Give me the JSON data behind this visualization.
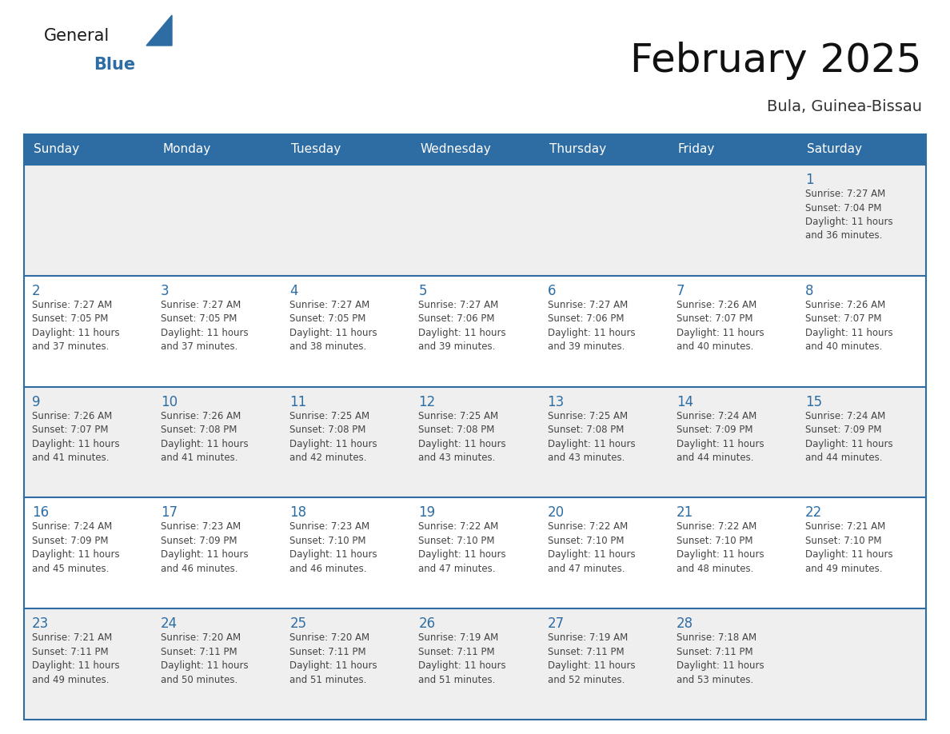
{
  "title": "February 2025",
  "subtitle": "Bula, Guinea-Bissau",
  "header_color": "#2E6DA4",
  "header_text_color": "#FFFFFF",
  "border_color": "#2E6DA4",
  "day_number_color": "#2E6DA4",
  "info_text_color": "#444444",
  "background_color": "#FFFFFF",
  "row_color_odd": "#EFEFEF",
  "row_color_even": "#FFFFFF",
  "days_of_week": [
    "Sunday",
    "Monday",
    "Tuesday",
    "Wednesday",
    "Thursday",
    "Friday",
    "Saturday"
  ],
  "weeks": [
    [
      {
        "day": null
      },
      {
        "day": null
      },
      {
        "day": null
      },
      {
        "day": null
      },
      {
        "day": null
      },
      {
        "day": null
      },
      {
        "day": 1,
        "sunrise": "7:27 AM",
        "sunset": "7:04 PM",
        "daylight": "11 hours and 36 minutes."
      }
    ],
    [
      {
        "day": 2,
        "sunrise": "7:27 AM",
        "sunset": "7:05 PM",
        "daylight": "11 hours and 37 minutes."
      },
      {
        "day": 3,
        "sunrise": "7:27 AM",
        "sunset": "7:05 PM",
        "daylight": "11 hours and 37 minutes."
      },
      {
        "day": 4,
        "sunrise": "7:27 AM",
        "sunset": "7:05 PM",
        "daylight": "11 hours and 38 minutes."
      },
      {
        "day": 5,
        "sunrise": "7:27 AM",
        "sunset": "7:06 PM",
        "daylight": "11 hours and 39 minutes."
      },
      {
        "day": 6,
        "sunrise": "7:27 AM",
        "sunset": "7:06 PM",
        "daylight": "11 hours and 39 minutes."
      },
      {
        "day": 7,
        "sunrise": "7:26 AM",
        "sunset": "7:07 PM",
        "daylight": "11 hours and 40 minutes."
      },
      {
        "day": 8,
        "sunrise": "7:26 AM",
        "sunset": "7:07 PM",
        "daylight": "11 hours and 40 minutes."
      }
    ],
    [
      {
        "day": 9,
        "sunrise": "7:26 AM",
        "sunset": "7:07 PM",
        "daylight": "11 hours and 41 minutes."
      },
      {
        "day": 10,
        "sunrise": "7:26 AM",
        "sunset": "7:08 PM",
        "daylight": "11 hours and 41 minutes."
      },
      {
        "day": 11,
        "sunrise": "7:25 AM",
        "sunset": "7:08 PM",
        "daylight": "11 hours and 42 minutes."
      },
      {
        "day": 12,
        "sunrise": "7:25 AM",
        "sunset": "7:08 PM",
        "daylight": "11 hours and 43 minutes."
      },
      {
        "day": 13,
        "sunrise": "7:25 AM",
        "sunset": "7:08 PM",
        "daylight": "11 hours and 43 minutes."
      },
      {
        "day": 14,
        "sunrise": "7:24 AM",
        "sunset": "7:09 PM",
        "daylight": "11 hours and 44 minutes."
      },
      {
        "day": 15,
        "sunrise": "7:24 AM",
        "sunset": "7:09 PM",
        "daylight": "11 hours and 44 minutes."
      }
    ],
    [
      {
        "day": 16,
        "sunrise": "7:24 AM",
        "sunset": "7:09 PM",
        "daylight": "11 hours and 45 minutes."
      },
      {
        "day": 17,
        "sunrise": "7:23 AM",
        "sunset": "7:09 PM",
        "daylight": "11 hours and 46 minutes."
      },
      {
        "day": 18,
        "sunrise": "7:23 AM",
        "sunset": "7:10 PM",
        "daylight": "11 hours and 46 minutes."
      },
      {
        "day": 19,
        "sunrise": "7:22 AM",
        "sunset": "7:10 PM",
        "daylight": "11 hours and 47 minutes."
      },
      {
        "day": 20,
        "sunrise": "7:22 AM",
        "sunset": "7:10 PM",
        "daylight": "11 hours and 47 minutes."
      },
      {
        "day": 21,
        "sunrise": "7:22 AM",
        "sunset": "7:10 PM",
        "daylight": "11 hours and 48 minutes."
      },
      {
        "day": 22,
        "sunrise": "7:21 AM",
        "sunset": "7:10 PM",
        "daylight": "11 hours and 49 minutes."
      }
    ],
    [
      {
        "day": 23,
        "sunrise": "7:21 AM",
        "sunset": "7:11 PM",
        "daylight": "11 hours and 49 minutes."
      },
      {
        "day": 24,
        "sunrise": "7:20 AM",
        "sunset": "7:11 PM",
        "daylight": "11 hours and 50 minutes."
      },
      {
        "day": 25,
        "sunrise": "7:20 AM",
        "sunset": "7:11 PM",
        "daylight": "11 hours and 51 minutes."
      },
      {
        "day": 26,
        "sunrise": "7:19 AM",
        "sunset": "7:11 PM",
        "daylight": "11 hours and 51 minutes."
      },
      {
        "day": 27,
        "sunrise": "7:19 AM",
        "sunset": "7:11 PM",
        "daylight": "11 hours and 52 minutes."
      },
      {
        "day": 28,
        "sunrise": "7:18 AM",
        "sunset": "7:11 PM",
        "daylight": "11 hours and 53 minutes."
      },
      {
        "day": null
      }
    ]
  ],
  "logo_text_general": "General",
  "logo_text_blue": "Blue",
  "logo_color_general": "#1a1a1a",
  "logo_color_blue": "#2E6DA4",
  "logo_triangle_color": "#2E6DA4"
}
